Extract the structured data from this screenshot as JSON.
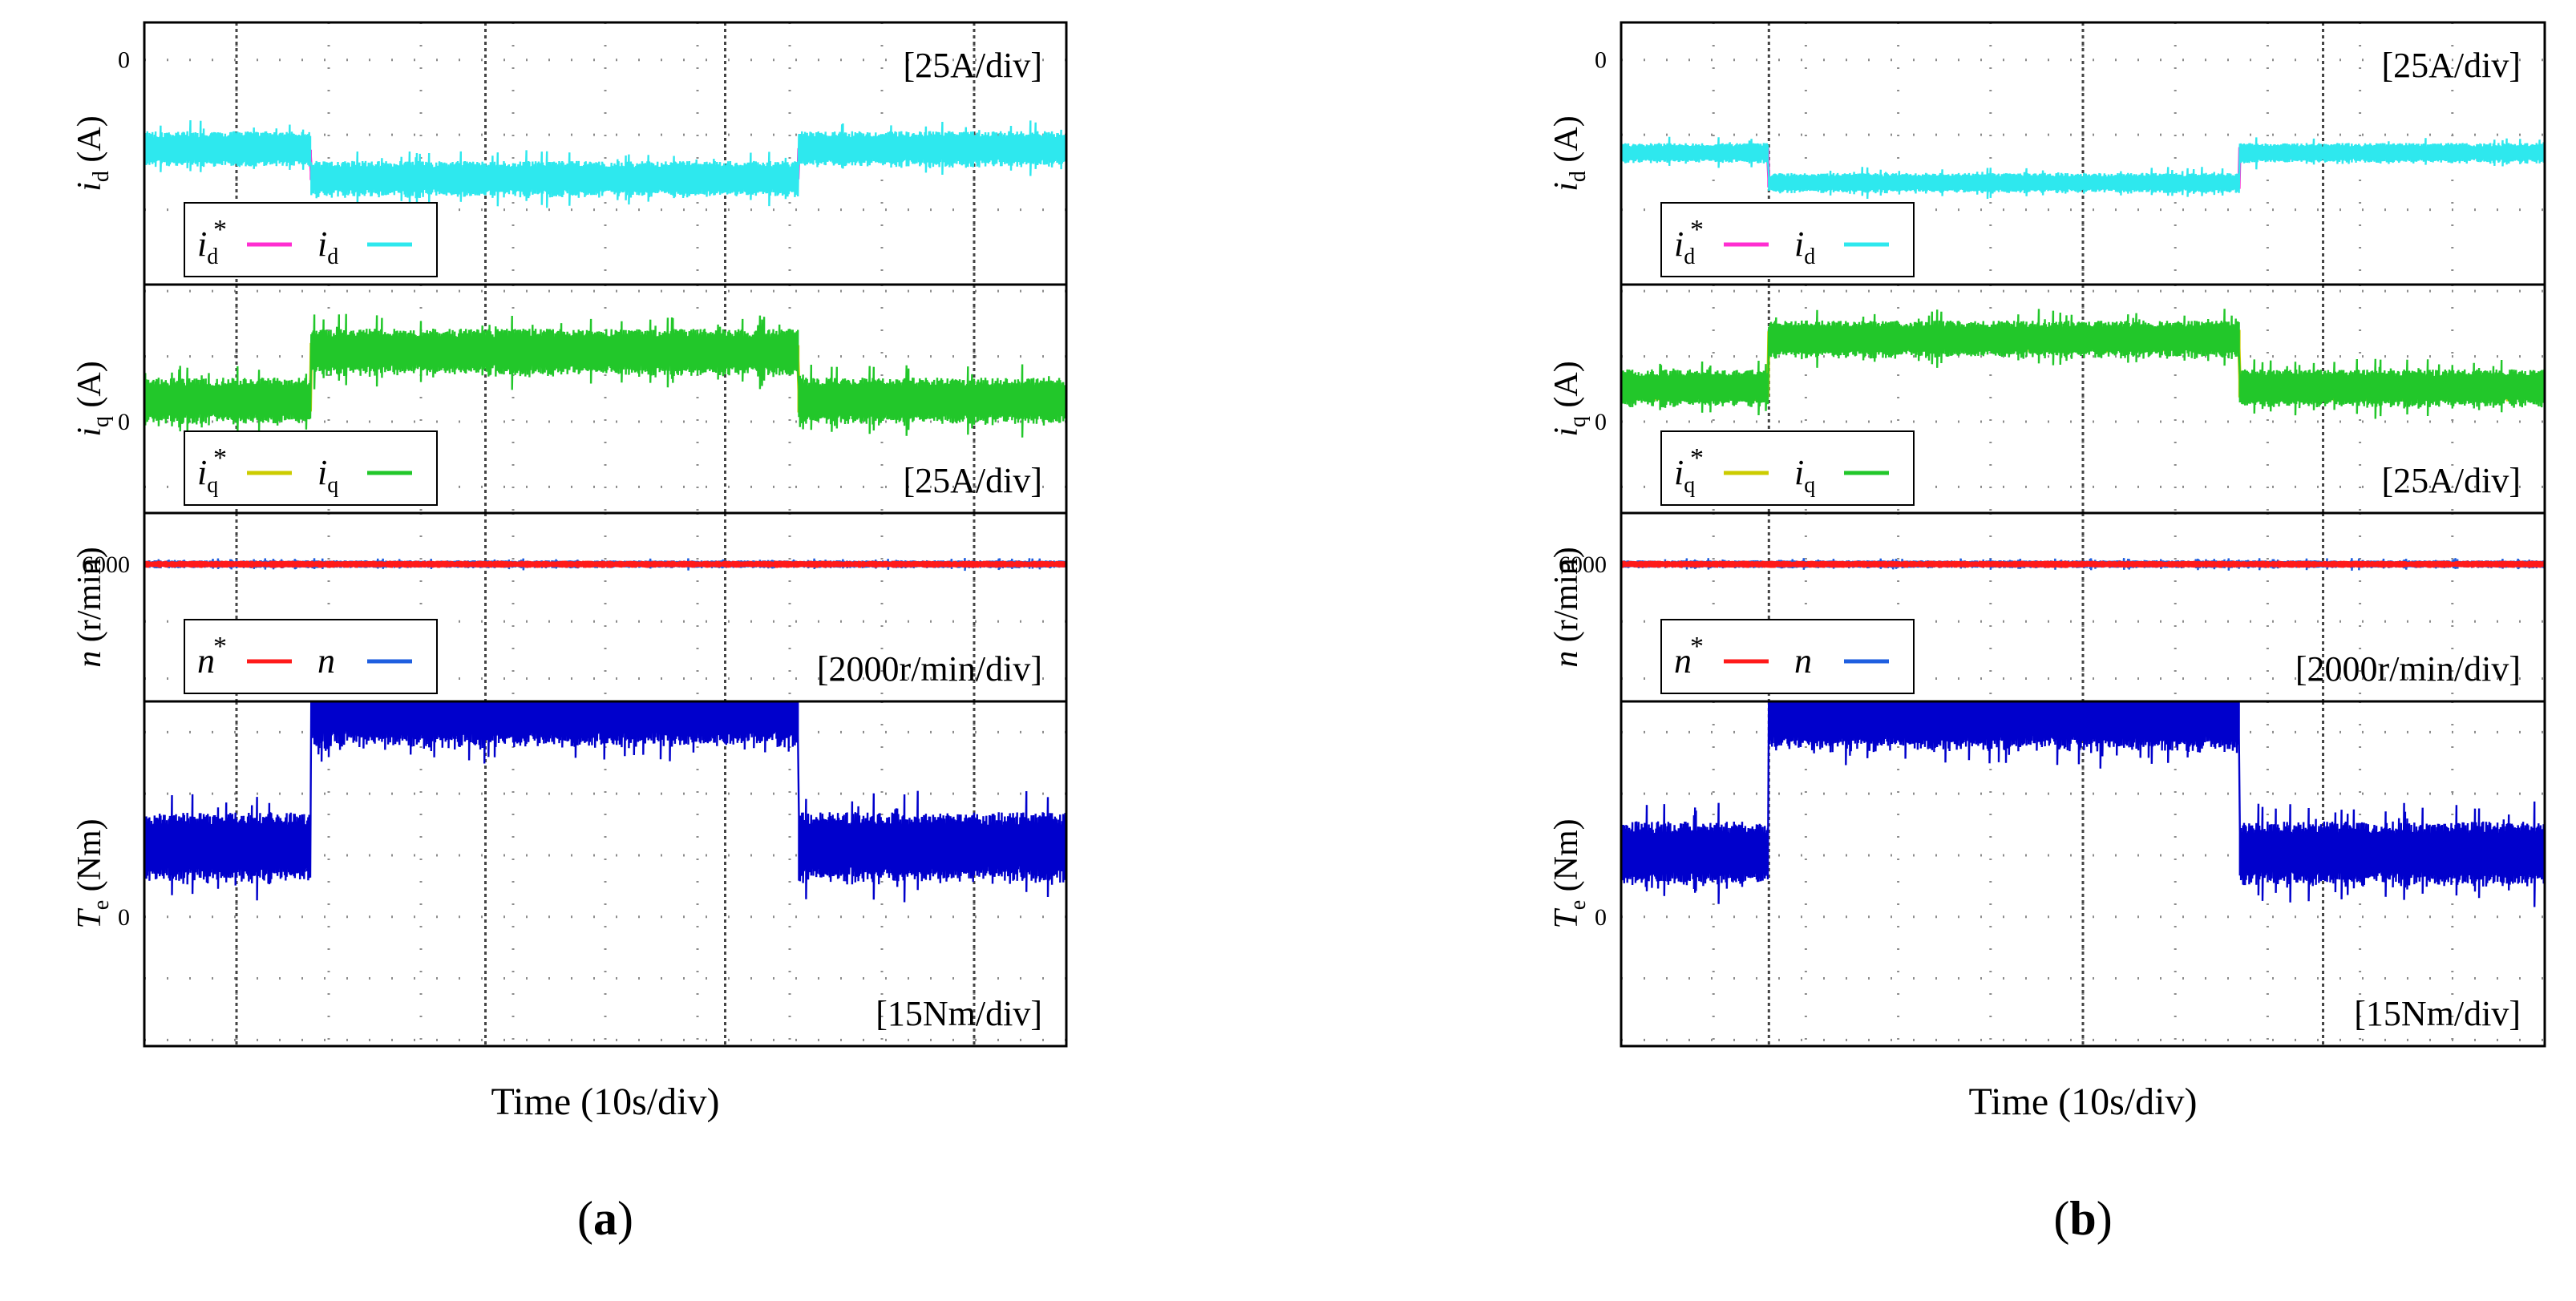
{
  "figure": {
    "panels": [
      {
        "label": "a",
        "label_display": "(a)",
        "time_label": "Time (10s/div)"
      },
      {
        "label": "b",
        "label_display": "(b)",
        "time_label": "Time (10s/div)"
      }
    ]
  },
  "chart_data": [
    {
      "type": "line",
      "panel": "a",
      "xlabel": "Time (10s/div)",
      "x_unit": "div",
      "xlim": [
        0,
        10
      ],
      "vertical_markers_div": [
        1,
        3.7,
        6.3,
        9
      ],
      "subplots": [
        {
          "key": "id",
          "ylabel_sym": "i",
          "ylabel_sub": "d",
          "ylabel_unit": " (A)",
          "zero_label": "0",
          "scale_label": "[25A/div]",
          "scale_position": "top-right",
          "y_unit": "div",
          "ylim": [
            -3,
            0.5
          ],
          "zero_level": 0,
          "legend": [
            {
              "sym": "i",
              "sub": "d",
              "star": true,
              "color": "#ff2ed1"
            },
            {
              "sym": "i",
              "sub": "d",
              "star": false,
              "color": "#2ee8ee"
            }
          ],
          "series": [
            {
              "name": "i_d reference",
              "role": "reference",
              "color": "#ff2ed1",
              "band_div": 0.15,
              "steps": [
                [
                  0,
                  -1.25
                ],
                [
                  1.8,
                  -1.55
                ],
                [
                  7.1,
                  -1.25
                ],
                [
                  10,
                  -1.25
                ]
              ]
            },
            {
              "name": "i_d",
              "role": "measured",
              "color": "#2ee8ee",
              "band_div": 0.5,
              "steps": [
                [
                  0,
                  -1.2
                ],
                [
                  1.8,
                  -1.6
                ],
                [
                  7.1,
                  -1.2
                ],
                [
                  10,
                  -1.2
                ]
              ]
            }
          ]
        },
        {
          "key": "iq",
          "ylabel_sym": "i",
          "ylabel_sub": "q",
          "ylabel_unit": " (A)",
          "zero_label": "0",
          "scale_label": "[25A/div]",
          "scale_position": "bottom-right",
          "y_unit": "div",
          "ylim": [
            -1.4,
            2.1
          ],
          "zero_level": 0,
          "legend": [
            {
              "sym": "i",
              "sub": "q",
              "star": true,
              "color": "#cccc00"
            },
            {
              "sym": "i",
              "sub": "q",
              "star": false,
              "color": "#22c72a"
            }
          ],
          "series": [
            {
              "name": "i_q reference",
              "role": "reference",
              "color": "#cccc00",
              "band_div": 0.35,
              "steps": [
                [
                  0,
                  0.3
                ],
                [
                  1.8,
                  1.05
                ],
                [
                  7.1,
                  0.3
                ],
                [
                  10,
                  0.3
                ]
              ]
            },
            {
              "name": "i_q",
              "role": "measured",
              "color": "#22c72a",
              "band_div": 0.75,
              "steps": [
                [
                  0,
                  0.3
                ],
                [
                  1.8,
                  1.05
                ],
                [
                  7.1,
                  0.3
                ],
                [
                  10,
                  0.3
                ]
              ]
            }
          ]
        },
        {
          "key": "n",
          "ylabel_sym": "n",
          "ylabel_sub": "",
          "ylabel_unit": " (r/min)",
          "zero_label": "6000",
          "scale_label": "[2000r/min/div]",
          "scale_position": "bottom-right",
          "y_unit": "div",
          "ylim": [
            -2.4,
            0.9
          ],
          "zero_level": 0,
          "legend": [
            {
              "sym": "n",
              "sub": "",
              "star": true,
              "color": "#ff1a1a"
            },
            {
              "sym": "n",
              "sub": "",
              "star": false,
              "color": "#1f5fe0"
            }
          ],
          "series": [
            {
              "name": "n",
              "role": "measured",
              "color": "#1f5fe0",
              "band_div": 0.14,
              "steps": [
                [
                  0,
                  0
                ],
                [
                  10,
                  0
                ]
              ]
            },
            {
              "name": "n reference",
              "role": "reference",
              "color": "#ff1a1a",
              "band_div": 0.12,
              "steps": [
                [
                  0,
                  0
                ],
                [
                  10,
                  0
                ]
              ]
            }
          ]
        },
        {
          "key": "Te",
          "ylabel_sym": "T",
          "ylabel_sub": "e",
          "ylabel_unit": " (Nm)",
          "zero_label": "0",
          "scale_label": "[15Nm/div]",
          "scale_position": "bottom-right",
          "y_unit": "div",
          "ylim": [
            -2.1,
            3.5
          ],
          "zero_level": 0,
          "legend": [],
          "series": [
            {
              "name": "T_e",
              "role": "measured",
              "color": "#0000cc",
              "band_div": 1.2,
              "steps": [
                [
                  0,
                  1.1
                ],
                [
                  1.8,
                  3.3
                ],
                [
                  7.1,
                  1.1
                ],
                [
                  10,
                  1.1
                ]
              ]
            }
          ]
        }
      ]
    },
    {
      "type": "line",
      "panel": "b",
      "xlabel": "Time (10s/div)",
      "x_unit": "div",
      "xlim": [
        0,
        10
      ],
      "vertical_markers_div": [
        1.6,
        5,
        7.6
      ],
      "subplots": [
        {
          "key": "id",
          "ylabel_sym": "i",
          "ylabel_sub": "d",
          "ylabel_unit": " (A)",
          "zero_label": "0",
          "scale_label": "[25A/div]",
          "scale_position": "top-right",
          "y_unit": "div",
          "ylim": [
            -3,
            0.5
          ],
          "zero_level": 0,
          "legend": [
            {
              "sym": "i",
              "sub": "d",
              "star": true,
              "color": "#ff2ed1"
            },
            {
              "sym": "i",
              "sub": "d",
              "star": false,
              "color": "#2ee8ee"
            }
          ],
          "series": [
            {
              "name": "i_d reference",
              "role": "reference",
              "color": "#ff2ed1",
              "band_div": 0.18,
              "steps": [
                [
                  0,
                  -1.25
                ],
                [
                  1.6,
                  -1.65
                ],
                [
                  6.7,
                  -1.25
                ],
                [
                  10,
                  -1.25
                ]
              ]
            },
            {
              "name": "i_d",
              "role": "measured",
              "color": "#2ee8ee",
              "band_div": 0.28,
              "steps": [
                [
                  0,
                  -1.25
                ],
                [
                  1.6,
                  -1.65
                ],
                [
                  6.7,
                  -1.25
                ],
                [
                  10,
                  -1.25
                ]
              ]
            }
          ]
        },
        {
          "key": "iq",
          "ylabel_sym": "i",
          "ylabel_sub": "q",
          "ylabel_unit": " (A)",
          "zero_label": "0",
          "scale_label": "[25A/div]",
          "scale_position": "bottom-right",
          "y_unit": "div",
          "ylim": [
            -1.4,
            2.1
          ],
          "zero_level": 0,
          "legend": [
            {
              "sym": "i",
              "sub": "q",
              "star": true,
              "color": "#cccc00"
            },
            {
              "sym": "i",
              "sub": "q",
              "star": false,
              "color": "#22c72a"
            }
          ],
          "series": [
            {
              "name": "i_q reference",
              "role": "reference",
              "color": "#cccc00",
              "band_div": 0.4,
              "steps": [
                [
                  0,
                  0.5
                ],
                [
                  1.6,
                  1.25
                ],
                [
                  6.7,
                  0.5
                ],
                [
                  10,
                  0.5
                ]
              ]
            },
            {
              "name": "i_q",
              "role": "measured",
              "color": "#22c72a",
              "band_div": 0.6,
              "steps": [
                [
                  0,
                  0.5
                ],
                [
                  1.6,
                  1.25
                ],
                [
                  6.7,
                  0.5
                ],
                [
                  10,
                  0.5
                ]
              ]
            }
          ]
        },
        {
          "key": "n",
          "ylabel_sym": "n",
          "ylabel_sub": "",
          "ylabel_unit": " (r/min)",
          "zero_label": "6000",
          "scale_label": "[2000r/min/div]",
          "scale_position": "bottom-right",
          "y_unit": "div",
          "ylim": [
            -2.4,
            0.9
          ],
          "zero_level": 0,
          "legend": [
            {
              "sym": "n",
              "sub": "",
              "star": true,
              "color": "#ff1a1a"
            },
            {
              "sym": "n",
              "sub": "",
              "star": false,
              "color": "#1f5fe0"
            }
          ],
          "series": [
            {
              "name": "n",
              "role": "measured",
              "color": "#1f5fe0",
              "band_div": 0.14,
              "steps": [
                [
                  0,
                  0
                ],
                [
                  10,
                  0
                ]
              ]
            },
            {
              "name": "n reference",
              "role": "reference",
              "color": "#ff1a1a",
              "band_div": 0.12,
              "steps": [
                [
                  0,
                  0
                ],
                [
                  10,
                  0
                ]
              ]
            }
          ]
        },
        {
          "key": "Te",
          "ylabel_sym": "T",
          "ylabel_sub": "e",
          "ylabel_unit": " (Nm)",
          "zero_label": "0",
          "scale_label": "[15Nm/div]",
          "scale_position": "bottom-right",
          "y_unit": "div",
          "ylim": [
            -2.1,
            3.5
          ],
          "zero_level": 0,
          "legend": [],
          "series": [
            {
              "name": "T_e",
              "role": "measured",
              "color": "#0000cc",
              "band_div": 1.1,
              "steps": [
                [
                  0,
                  1.0
                ],
                [
                  1.6,
                  3.2
                ],
                [
                  6.7,
                  1.0
                ],
                [
                  10,
                  1.0
                ]
              ]
            }
          ]
        }
      ]
    }
  ]
}
